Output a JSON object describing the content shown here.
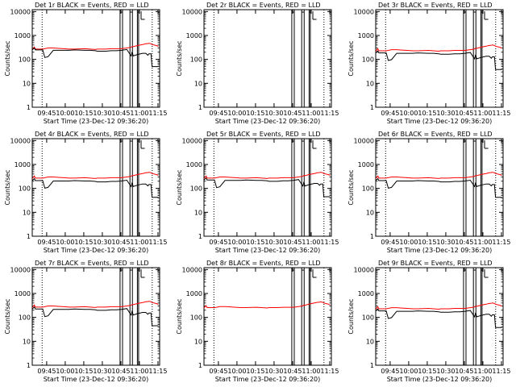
{
  "chart_data": {
    "type": "line",
    "x_ticks": [
      "09:45",
      "10:00",
      "10:15",
      "10:30",
      "10:45",
      "11:00",
      "11:15"
    ],
    "y_ticks": [
      "1",
      "10",
      "100",
      "1000",
      "10000"
    ],
    "y_scale": "log",
    "ylim": [
      1,
      12000
    ],
    "xlabel": "Start Time (23-Dec-12 09:36:20)",
    "ylabel": "Counts/sec",
    "colors": {
      "events": "#000000",
      "lld": "#ff0000"
    },
    "panels": [
      {
        "title": "Det 1r BLACK = Events, RED = LLD",
        "has_events": true,
        "events_scale": 1.0,
        "lld_scale": 1.0
      },
      {
        "title": "Det 2r BLACK = Events, RED = LLD",
        "has_events": false,
        "events_scale": 0.0,
        "lld_scale": 0.0
      },
      {
        "title": "Det 3r BLACK = Events, RED = LLD",
        "has_events": true,
        "events_scale": 0.75,
        "lld_scale": 0.85
      },
      {
        "title": "Det 4r BLACK = Events, RED = LLD",
        "has_events": true,
        "events_scale": 0.85,
        "lld_scale": 1.0
      },
      {
        "title": "Det 5r BLACK = Events, RED = LLD",
        "has_events": true,
        "events_scale": 0.9,
        "lld_scale": 1.0
      },
      {
        "title": "Det 6r BLACK = Events, RED = LLD",
        "has_events": true,
        "events_scale": 0.85,
        "lld_scale": 1.0
      },
      {
        "title": "Det 7r BLACK = Events, RED = LLD",
        "has_events": true,
        "events_scale": 0.9,
        "lld_scale": 1.0
      },
      {
        "title": "Det 8r BLACK = Events, RED = LLD",
        "has_events": false,
        "events_scale": 0.0,
        "lld_scale": 0.95
      },
      {
        "title": "Det 9r BLACK = Events, RED = LLD",
        "has_events": true,
        "events_scale": 0.75,
        "lld_scale": 0.85
      }
    ],
    "x_minutes": [
      0,
      2,
      3,
      10,
      12,
      15,
      20,
      25,
      30,
      35,
      40,
      50,
      55,
      60,
      62,
      65,
      70,
      75,
      80,
      85,
      90,
      94,
      95,
      96,
      100,
      105,
      108,
      110,
      111,
      113,
      114,
      118,
      120
    ],
    "events": [
      250,
      300,
      250,
      250,
      120,
      130,
      240,
      240,
      240,
      240,
      250,
      240,
      240,
      230,
      220,
      220,
      220,
      230,
      230,
      240,
      260,
      140,
      210,
      140,
      160,
      180,
      180,
      150,
      170,
      170,
      50,
      50,
      50
    ],
    "lld": [
      260,
      330,
      270,
      270,
      280,
      300,
      300,
      290,
      280,
      270,
      270,
      280,
      270,
      260,
      270,
      270,
      270,
      280,
      280,
      280,
      300,
      320,
      350,
      340,
      380,
      420,
      450,
      460,
      470,
      450,
      420,
      380,
      350
    ]
  }
}
